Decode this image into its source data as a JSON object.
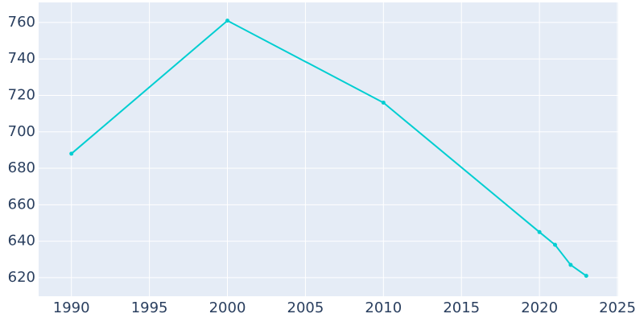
{
  "chart_data": {
    "type": "line",
    "x": [
      1990,
      2000,
      2010,
      2020,
      2021,
      2022,
      2023
    ],
    "series": [
      {
        "color": "#00ced1",
        "values": [
          688,
          761,
          716,
          645,
          638,
          627,
          621
        ]
      }
    ],
    "xlim": [
      1987.9,
      2025.05
    ],
    "xticks": [
      1990,
      1995,
      2000,
      2005,
      2010,
      2015,
      2020,
      2025
    ],
    "ylim": [
      609.8,
      771
    ],
    "yticks": [
      620,
      640,
      660,
      680,
      700,
      720,
      740,
      760
    ],
    "grid": true
  }
}
